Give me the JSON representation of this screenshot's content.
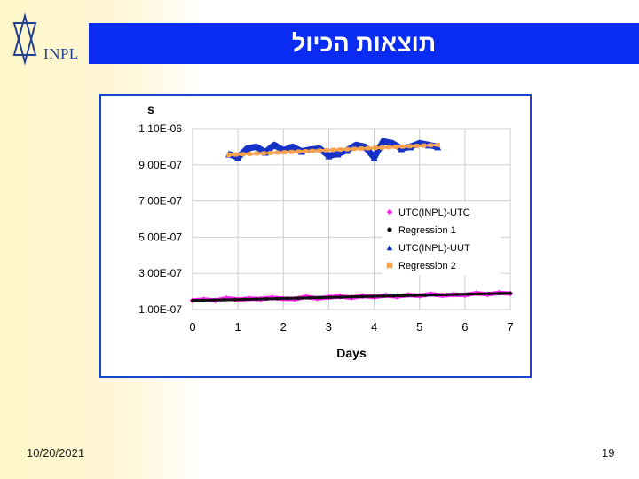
{
  "header": {
    "logo_text": "INPL",
    "title": "תוצאות הכיול",
    "title_bar_color": "#0a2cf2"
  },
  "footer": {
    "date": "10/20/2021",
    "page_number": "19"
  },
  "chart_data": {
    "type": "scatter",
    "title": "",
    "xlabel": "Days",
    "ylabel": "s",
    "xlim": [
      0,
      7
    ],
    "ylim": [
      1e-07,
      1.1e-06
    ],
    "x_ticks": [
      0,
      1,
      2,
      3,
      4,
      5,
      6,
      7
    ],
    "y_ticks": [
      1e-07,
      3e-07,
      5e-07,
      7e-07,
      9e-07,
      1.1e-06
    ],
    "x_tick_labels": [
      "0",
      "1",
      "2",
      "3",
      "4",
      "5",
      "6",
      "7"
    ],
    "y_tick_labels": [
      "1.00E-07",
      "3.00E-07",
      "5.00E-07",
      "7.00E-07",
      "9.00E-07",
      "1.10E-06"
    ],
    "grid": true,
    "legend_position": "right-middle",
    "series": [
      {
        "name": "UTC(INPL)-UTC",
        "marker": "diamond",
        "color": "#ff22ee",
        "x": [
          0,
          0.25,
          0.5,
          0.75,
          1,
          1.25,
          1.5,
          1.75,
          2,
          2.25,
          2.5,
          2.75,
          3,
          3.25,
          3.5,
          3.75,
          4,
          4.25,
          4.5,
          4.75,
          5,
          5.25,
          5.5,
          5.75,
          6,
          6.25,
          6.5,
          6.75,
          7
        ],
        "y": [
          1.5e-07,
          1.55e-07,
          1.5e-07,
          1.62e-07,
          1.55e-07,
          1.6e-07,
          1.58e-07,
          1.65e-07,
          1.6e-07,
          1.58e-07,
          1.7e-07,
          1.62e-07,
          1.68e-07,
          1.72e-07,
          1.66e-07,
          1.75e-07,
          1.7e-07,
          1.78e-07,
          1.72e-07,
          1.8e-07,
          1.76e-07,
          1.85e-07,
          1.78e-07,
          1.82e-07,
          1.8e-07,
          1.9e-07,
          1.84e-07,
          1.92e-07,
          1.88e-07
        ]
      },
      {
        "name": "Regression 1",
        "marker": "circle",
        "color": "#111111",
        "x": [
          0,
          7
        ],
        "y": [
          1.5e-07,
          1.9e-07
        ]
      },
      {
        "name": "UTC(INPL)-UUT",
        "marker": "triangle",
        "color": "#1631c8",
        "x": [
          0.8,
          1.0,
          1.2,
          1.4,
          1.6,
          1.8,
          2.0,
          2.2,
          2.4,
          2.6,
          2.8,
          3.0,
          3.2,
          3.4,
          3.6,
          3.8,
          4.0,
          4.2,
          4.4,
          4.6,
          4.8,
          5.0,
          5.2,
          5.4
        ],
        "y": [
          9.6e-07,
          9.4e-07,
          9.9e-07,
          1e-06,
          9.7e-07,
          1.01e-06,
          9.8e-07,
          1e-06,
          9.75e-07,
          9.85e-07,
          9.9e-07,
          9.5e-07,
          9.6e-07,
          9.8e-07,
          1.01e-06,
          1e-06,
          9.4e-07,
          1.03e-06,
          1.02e-06,
          9.9e-07,
          1e-06,
          1.02e-06,
          1.01e-06,
          1e-06
        ]
      },
      {
        "name": "Regression 2",
        "marker": "square",
        "color": "#f7a24c",
        "x": [
          0.8,
          5.4
        ],
        "y": [
          9.55e-07,
          1.01e-06
        ]
      }
    ]
  }
}
